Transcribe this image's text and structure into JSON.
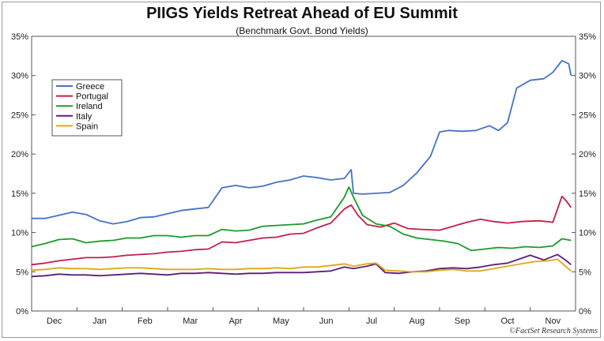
{
  "title": "PIIGS Yields Retreat Ahead of EU Summit",
  "subtitle": "(Benchmark Govt. Bond Yields)",
  "credit": "©FactSet Research Systems",
  "chart_data": {
    "type": "line",
    "title": "PIIGS Yields Retreat Ahead of EU Summit",
    "subtitle": "(Benchmark Govt. Bond Yields)",
    "x_ticks": [
      "Dec",
      "Jan",
      "Feb",
      "Mar",
      "Apr",
      "May",
      "Jun",
      "Jul",
      "Aug",
      "Sep",
      "Oct",
      "Nov"
    ],
    "y_ticks": [
      "0%",
      "5%",
      "10%",
      "15%",
      "20%",
      "25%",
      "30%",
      "35%"
    ],
    "ylim": [
      0,
      35
    ],
    "xlim": [
      0,
      12
    ],
    "grid": false,
    "legend_position": "upper-left",
    "series": [
      {
        "name": "Greece",
        "color": "#4472c4",
        "points": [
          [
            0,
            11.8
          ],
          [
            0.3,
            11.8
          ],
          [
            0.6,
            12.2
          ],
          [
            0.9,
            12.6
          ],
          [
            1.2,
            12.3
          ],
          [
            1.5,
            11.5
          ],
          [
            1.8,
            11.1
          ],
          [
            2.1,
            11.4
          ],
          [
            2.4,
            11.9
          ],
          [
            2.7,
            12.0
          ],
          [
            3.0,
            12.4
          ],
          [
            3.3,
            12.8
          ],
          [
            3.6,
            13.0
          ],
          [
            3.9,
            13.2
          ],
          [
            4.2,
            15.7
          ],
          [
            4.5,
            16.0
          ],
          [
            4.8,
            15.7
          ],
          [
            5.1,
            15.9
          ],
          [
            5.4,
            16.4
          ],
          [
            5.7,
            16.7
          ],
          [
            6.0,
            17.2
          ],
          [
            6.3,
            17.0
          ],
          [
            6.6,
            16.7
          ],
          [
            6.9,
            16.9
          ],
          [
            7.05,
            18.0
          ],
          [
            7.1,
            15.0
          ],
          [
            7.3,
            14.9
          ],
          [
            7.6,
            15.0
          ],
          [
            7.9,
            15.1
          ],
          [
            8.2,
            16.0
          ],
          [
            8.5,
            17.6
          ],
          [
            8.8,
            19.7
          ],
          [
            9.0,
            22.8
          ],
          [
            9.2,
            23.0
          ],
          [
            9.5,
            22.9
          ],
          [
            9.8,
            23.0
          ],
          [
            10.1,
            23.6
          ],
          [
            10.3,
            23.0
          ],
          [
            10.5,
            24.0
          ],
          [
            10.7,
            28.4
          ],
          [
            11.0,
            29.4
          ],
          [
            11.3,
            29.6
          ],
          [
            11.5,
            30.4
          ],
          [
            11.7,
            31.9
          ],
          [
            11.85,
            31.5
          ],
          [
            11.9,
            30.0
          ]
        ]
      },
      {
        "name": "Portugal",
        "color": "#c0204a",
        "points": [
          [
            0,
            5.9
          ],
          [
            0.3,
            6.1
          ],
          [
            0.6,
            6.4
          ],
          [
            0.9,
            6.6
          ],
          [
            1.2,
            6.8
          ],
          [
            1.5,
            6.8
          ],
          [
            1.8,
            6.9
          ],
          [
            2.1,
            7.1
          ],
          [
            2.4,
            7.2
          ],
          [
            2.7,
            7.3
          ],
          [
            3.0,
            7.5
          ],
          [
            3.3,
            7.6
          ],
          [
            3.6,
            7.8
          ],
          [
            3.9,
            7.9
          ],
          [
            4.2,
            8.8
          ],
          [
            4.5,
            8.7
          ],
          [
            4.8,
            9.0
          ],
          [
            5.1,
            9.3
          ],
          [
            5.4,
            9.4
          ],
          [
            5.7,
            9.8
          ],
          [
            6.0,
            9.9
          ],
          [
            6.3,
            10.6
          ],
          [
            6.6,
            11.2
          ],
          [
            6.9,
            13.0
          ],
          [
            7.05,
            13.5
          ],
          [
            7.2,
            12.2
          ],
          [
            7.4,
            11.0
          ],
          [
            7.7,
            10.7
          ],
          [
            8.0,
            11.2
          ],
          [
            8.3,
            10.5
          ],
          [
            8.6,
            10.4
          ],
          [
            9.0,
            10.3
          ],
          [
            9.3,
            10.8
          ],
          [
            9.6,
            11.3
          ],
          [
            9.9,
            11.7
          ],
          [
            10.2,
            11.4
          ],
          [
            10.5,
            11.2
          ],
          [
            10.8,
            11.4
          ],
          [
            11.2,
            11.5
          ],
          [
            11.5,
            11.3
          ],
          [
            11.7,
            14.6
          ],
          [
            11.8,
            14.0
          ],
          [
            11.9,
            13.2
          ]
        ]
      },
      {
        "name": "Ireland",
        "color": "#1a9b2a",
        "points": [
          [
            0,
            8.2
          ],
          [
            0.3,
            8.6
          ],
          [
            0.6,
            9.1
          ],
          [
            0.9,
            9.2
          ],
          [
            1.2,
            8.7
          ],
          [
            1.5,
            8.9
          ],
          [
            1.8,
            9.0
          ],
          [
            2.1,
            9.3
          ],
          [
            2.4,
            9.3
          ],
          [
            2.7,
            9.6
          ],
          [
            3.0,
            9.6
          ],
          [
            3.3,
            9.4
          ],
          [
            3.6,
            9.6
          ],
          [
            3.9,
            9.6
          ],
          [
            4.2,
            10.4
          ],
          [
            4.5,
            10.2
          ],
          [
            4.8,
            10.3
          ],
          [
            5.1,
            10.8
          ],
          [
            5.4,
            10.9
          ],
          [
            5.7,
            11.0
          ],
          [
            6.0,
            11.1
          ],
          [
            6.3,
            11.6
          ],
          [
            6.6,
            12.0
          ],
          [
            6.9,
            14.5
          ],
          [
            7.0,
            15.8
          ],
          [
            7.1,
            14.5
          ],
          [
            7.3,
            12.2
          ],
          [
            7.6,
            11.1
          ],
          [
            7.9,
            10.8
          ],
          [
            8.2,
            9.8
          ],
          [
            8.5,
            9.3
          ],
          [
            8.8,
            9.1
          ],
          [
            9.1,
            8.9
          ],
          [
            9.4,
            8.6
          ],
          [
            9.7,
            7.7
          ],
          [
            10.0,
            7.9
          ],
          [
            10.3,
            8.1
          ],
          [
            10.6,
            8.0
          ],
          [
            10.9,
            8.2
          ],
          [
            11.2,
            8.1
          ],
          [
            11.5,
            8.3
          ],
          [
            11.7,
            9.2
          ],
          [
            11.9,
            9.0
          ]
        ]
      },
      {
        "name": "Italy",
        "color": "#5b1e7a",
        "points": [
          [
            0,
            4.4
          ],
          [
            0.3,
            4.5
          ],
          [
            0.6,
            4.7
          ],
          [
            0.9,
            4.6
          ],
          [
            1.2,
            4.6
          ],
          [
            1.5,
            4.5
          ],
          [
            1.8,
            4.6
          ],
          [
            2.1,
            4.7
          ],
          [
            2.4,
            4.8
          ],
          [
            2.7,
            4.7
          ],
          [
            3.0,
            4.6
          ],
          [
            3.3,
            4.8
          ],
          [
            3.6,
            4.8
          ],
          [
            3.9,
            4.9
          ],
          [
            4.2,
            4.8
          ],
          [
            4.5,
            4.7
          ],
          [
            4.8,
            4.8
          ],
          [
            5.1,
            4.8
          ],
          [
            5.4,
            4.9
          ],
          [
            5.7,
            4.9
          ],
          [
            6.0,
            4.9
          ],
          [
            6.3,
            5.0
          ],
          [
            6.6,
            5.1
          ],
          [
            6.9,
            5.6
          ],
          [
            7.1,
            5.4
          ],
          [
            7.4,
            5.7
          ],
          [
            7.6,
            6.0
          ],
          [
            7.8,
            4.9
          ],
          [
            8.1,
            4.8
          ],
          [
            8.4,
            5.0
          ],
          [
            8.7,
            5.1
          ],
          [
            9.0,
            5.4
          ],
          [
            9.3,
            5.5
          ],
          [
            9.6,
            5.4
          ],
          [
            9.9,
            5.6
          ],
          [
            10.2,
            5.9
          ],
          [
            10.5,
            6.1
          ],
          [
            10.8,
            6.7
          ],
          [
            11.0,
            7.1
          ],
          [
            11.3,
            6.5
          ],
          [
            11.6,
            7.2
          ],
          [
            11.8,
            6.4
          ],
          [
            11.9,
            5.9
          ]
        ]
      },
      {
        "name": "Spain",
        "color": "#e0a816",
        "points": [
          [
            0,
            5.2
          ],
          [
            0.3,
            5.3
          ],
          [
            0.6,
            5.5
          ],
          [
            0.9,
            5.4
          ],
          [
            1.2,
            5.4
          ],
          [
            1.5,
            5.3
          ],
          [
            1.8,
            5.4
          ],
          [
            2.1,
            5.5
          ],
          [
            2.4,
            5.5
          ],
          [
            2.7,
            5.4
          ],
          [
            3.0,
            5.3
          ],
          [
            3.3,
            5.3
          ],
          [
            3.6,
            5.3
          ],
          [
            3.9,
            5.4
          ],
          [
            4.2,
            5.3
          ],
          [
            4.5,
            5.3
          ],
          [
            4.8,
            5.4
          ],
          [
            5.1,
            5.4
          ],
          [
            5.4,
            5.5
          ],
          [
            5.7,
            5.4
          ],
          [
            6.0,
            5.6
          ],
          [
            6.3,
            5.6
          ],
          [
            6.6,
            5.8
          ],
          [
            6.9,
            6.0
          ],
          [
            7.1,
            5.7
          ],
          [
            7.4,
            6.0
          ],
          [
            7.6,
            6.1
          ],
          [
            7.8,
            5.2
          ],
          [
            8.1,
            5.1
          ],
          [
            8.4,
            5.0
          ],
          [
            8.7,
            5.0
          ],
          [
            9.0,
            5.2
          ],
          [
            9.3,
            5.3
          ],
          [
            9.6,
            5.1
          ],
          [
            9.9,
            5.1
          ],
          [
            10.2,
            5.4
          ],
          [
            10.5,
            5.7
          ],
          [
            10.8,
            6.0
          ],
          [
            11.1,
            6.3
          ],
          [
            11.4,
            6.4
          ],
          [
            11.6,
            6.6
          ],
          [
            11.8,
            5.6
          ],
          [
            11.9,
            5.1
          ]
        ]
      }
    ]
  }
}
